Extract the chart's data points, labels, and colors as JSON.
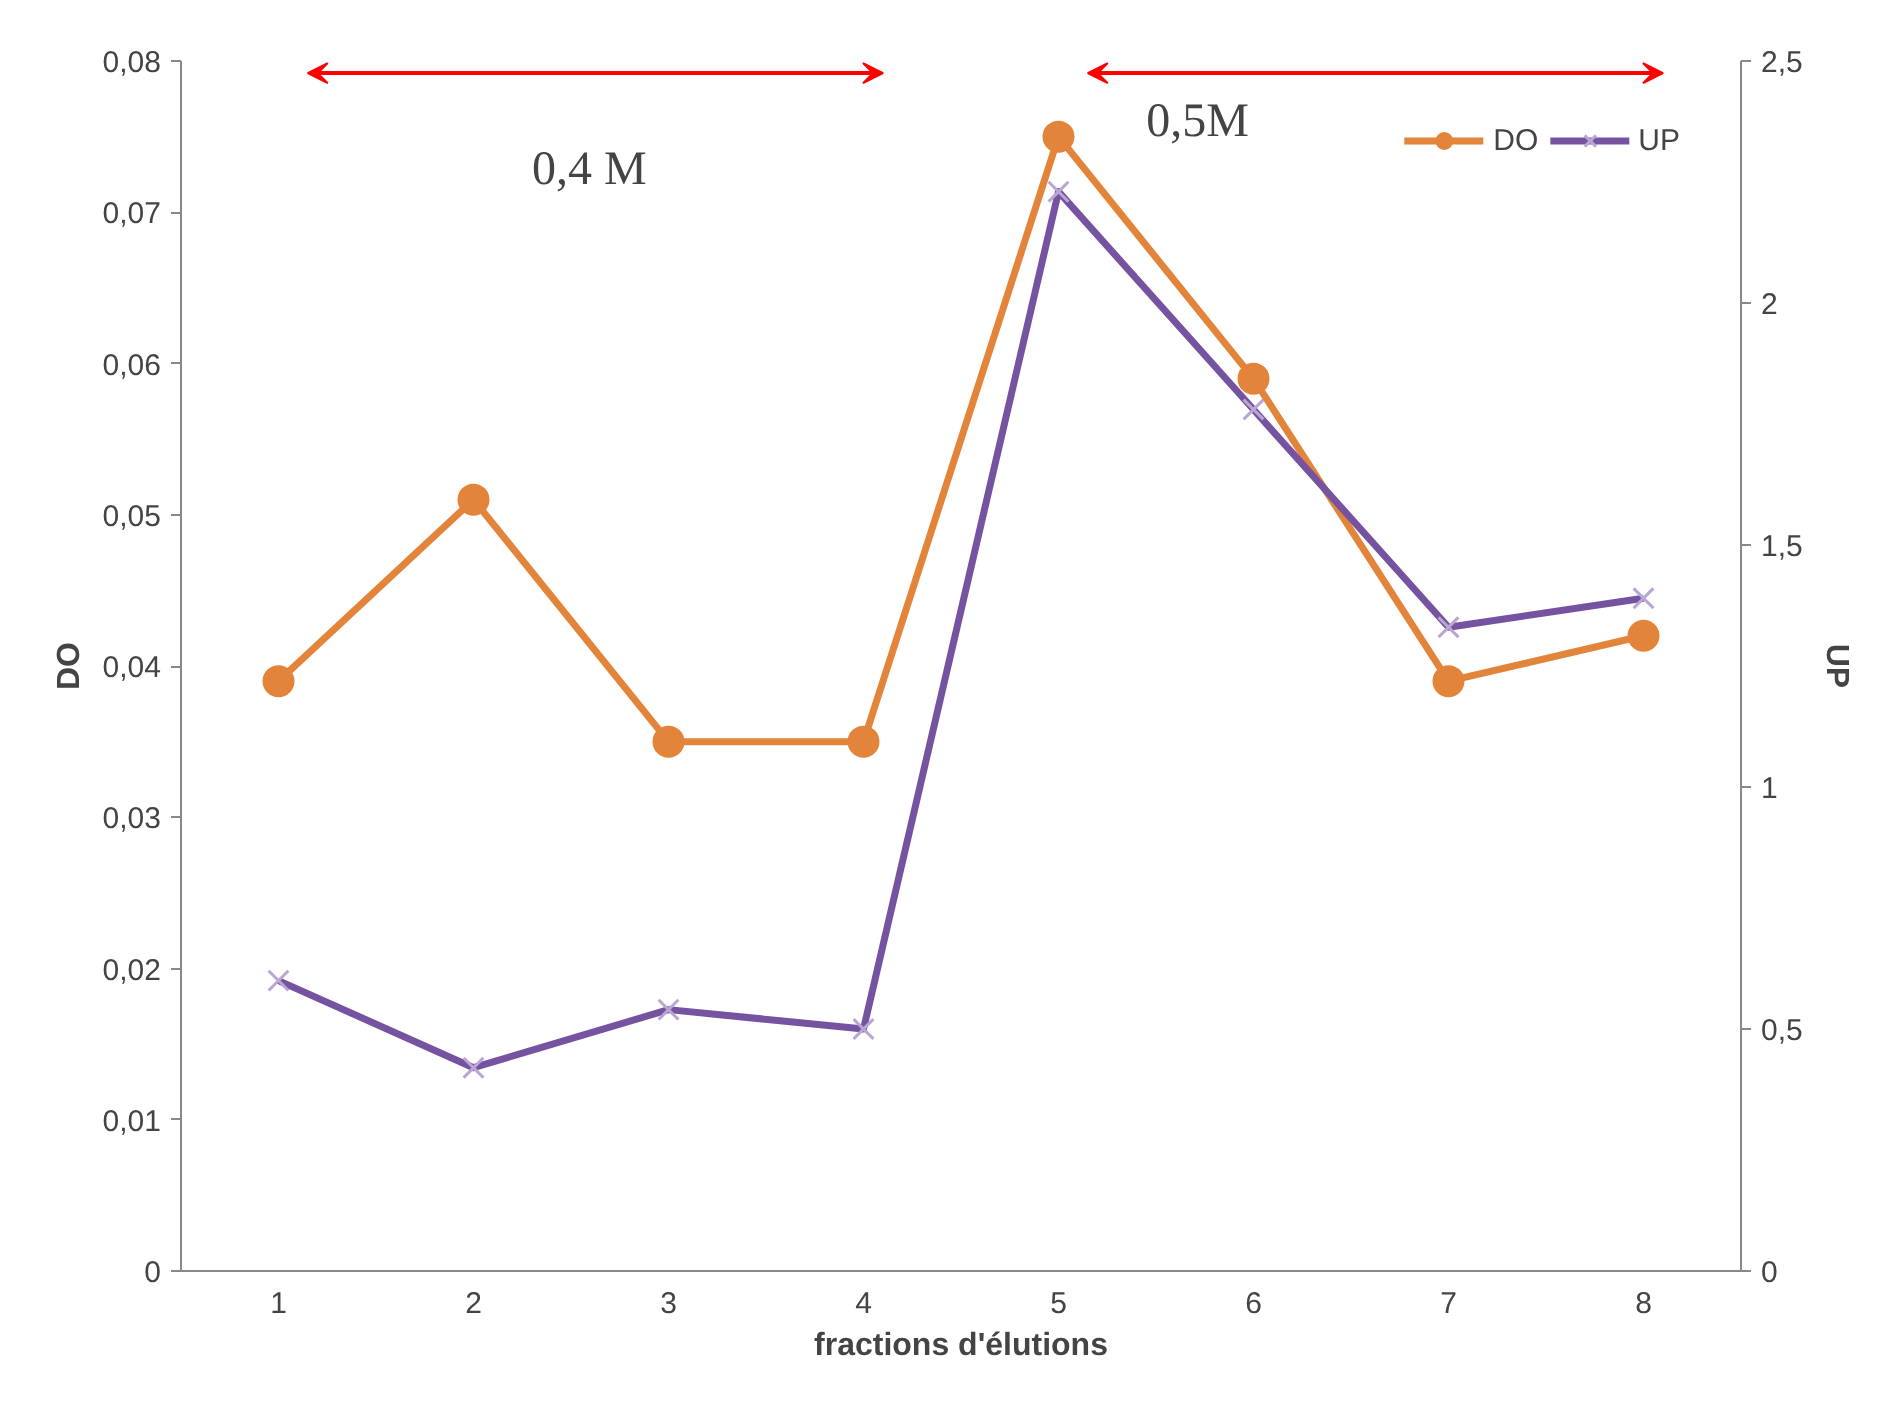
{
  "chart_data": {
    "type": "line",
    "xlabel": "fractions d'élutions",
    "ylabel": "DO",
    "y2label": "UP",
    "categories": [
      "1",
      "2",
      "3",
      "4",
      "5",
      "6",
      "7",
      "8"
    ],
    "series": [
      {
        "name": "DO",
        "color": "#e3843b",
        "marker": "circle",
        "values": [
          0.039,
          0.051,
          0.035,
          0.035,
          0.075,
          0.059,
          0.039,
          0.042
        ]
      },
      {
        "name": "UP",
        "color": "#7553a0",
        "marker": "cross",
        "axis": "y2",
        "values": [
          0.6,
          0.42,
          0.54,
          0.5,
          2.23,
          1.78,
          1.33,
          1.39
        ]
      }
    ],
    "ylim": [
      0,
      0.08
    ],
    "yticks": [
      {
        "value": 0,
        "label": "0"
      },
      {
        "value": 0.01,
        "label": "0,01"
      },
      {
        "value": 0.02,
        "label": "0,02"
      },
      {
        "value": 0.03,
        "label": "0,03"
      },
      {
        "value": 0.04,
        "label": "0,04"
      },
      {
        "value": 0.05,
        "label": "0,05"
      },
      {
        "value": 0.06,
        "label": "0,06"
      },
      {
        "value": 0.07,
        "label": "0,07"
      },
      {
        "value": 0.08,
        "label": "0,08"
      }
    ],
    "y2lim": [
      0,
      2.5
    ],
    "y2ticks": [
      {
        "value": 0,
        "label": "0"
      },
      {
        "value": 0.5,
        "label": "0,5"
      },
      {
        "value": 1,
        "label": "1"
      },
      {
        "value": 1.5,
        "label": "1,5"
      },
      {
        "value": 2,
        "label": "2"
      },
      {
        "value": 2.5,
        "label": "2,5"
      }
    ],
    "annotations": [
      "0,4 M",
      "0,5M"
    ],
    "grid": false,
    "legend": "top right",
    "line_style": "solid"
  }
}
